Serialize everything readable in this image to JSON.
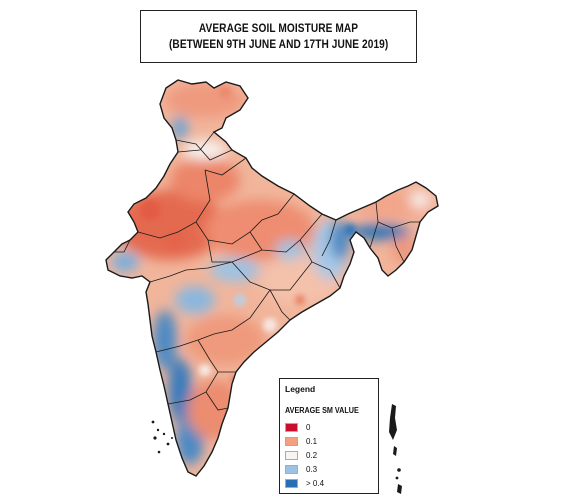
{
  "title": {
    "line1": "AVERAGE SOIL MOISTURE MAP",
    "line2": "(BETWEEN 9TH JUNE AND 17TH JUNE 2019)"
  },
  "legend": {
    "title": "Legend",
    "subtitle": "AVERAGE SM VALUE",
    "items": [
      {
        "label": "0",
        "color": "#c8102e"
      },
      {
        "label": "0.1",
        "color": "#f2a07e"
      },
      {
        "label": "0.2",
        "color": "#f7f4f2"
      },
      {
        "label": "0.3",
        "color": "#9cc3e3"
      },
      {
        "label": "> 0.4",
        "color": "#2a6fb3"
      }
    ]
  },
  "colors": {
    "dry": "#ea7a62",
    "moderate": "#f3b49a",
    "neutral": "#f6f1ee",
    "wet": "#a7c8e6",
    "very_wet": "#2f75b8",
    "boundary": "#1a1a1a"
  }
}
